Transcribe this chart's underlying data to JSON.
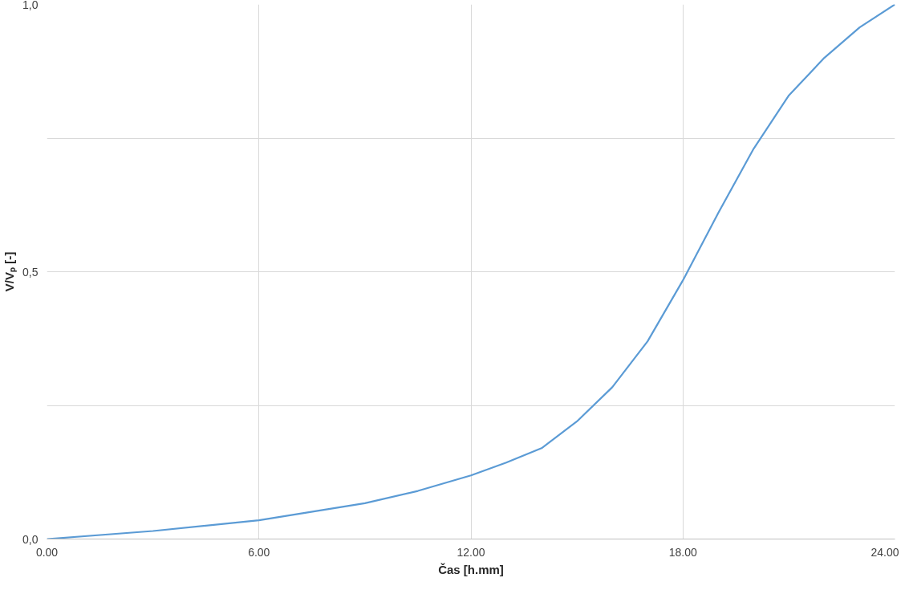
{
  "chart_data": {
    "type": "line",
    "xlabel": "Čas [h.mm]",
    "ylabel": "V/Vₚ [-]",
    "x": [
      0,
      3,
      6,
      9,
      10.5,
      12,
      13,
      14,
      15,
      16,
      17,
      18,
      19,
      20,
      21,
      22,
      23,
      24
    ],
    "series": [
      {
        "color": "#5b9bd5",
        "values": [
          0.0,
          0.015,
          0.035,
          0.067,
          0.09,
          0.119,
          0.143,
          0.17,
          0.22,
          0.284,
          0.37,
          0.484,
          0.61,
          0.73,
          0.83,
          0.9,
          0.957,
          1.0
        ]
      }
    ],
    "xlim": [
      0,
      24
    ],
    "xticks": [
      {
        "value": 0,
        "label": "0.00"
      },
      {
        "value": 6,
        "label": "6.00"
      },
      {
        "value": 12,
        "label": "12.00"
      },
      {
        "value": 18,
        "label": "18.00"
      },
      {
        "value": 24,
        "label": "24.00"
      }
    ],
    "ylim": [
      0,
      1
    ],
    "yticks": [
      {
        "value": 0,
        "label": "0,0"
      },
      {
        "value": 0.25,
        "label": null
      },
      {
        "value": 0.5,
        "label": "0,5"
      },
      {
        "value": 0.75,
        "label": null
      },
      {
        "value": 1,
        "label": "1,0"
      }
    ],
    "grid": true,
    "line_style": "solid",
    "marker": "none"
  }
}
